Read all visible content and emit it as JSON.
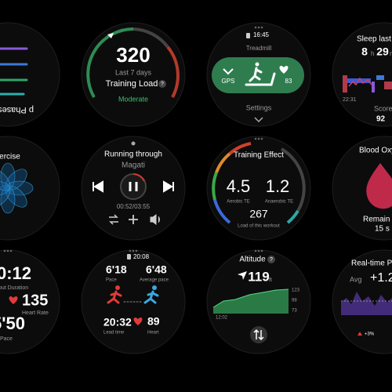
{
  "faces": [
    {
      "texts": [
        "p Phases"
      ]
    },
    {
      "texts": [
        "320",
        "Last 7 days",
        "Training Load",
        "?",
        "Moderate"
      ]
    },
    {
      "texts": [
        "16:45",
        "Treadmill",
        "GPS",
        "83",
        "Settings"
      ]
    },
    {
      "texts": [
        "Sleep last",
        "8",
        "h",
        "29",
        "m",
        "22:31",
        "Score",
        "92"
      ]
    },
    {
      "texts": [
        "xercise"
      ]
    },
    {
      "texts": [
        "Running through",
        "Magati",
        "00:52/03:55"
      ]
    },
    {
      "texts": [
        "Training Effect",
        "4.5",
        "1.2",
        "Aerobic TE",
        "Anaerobic TE",
        "267",
        "Load of this workout"
      ]
    },
    {
      "texts": [
        "Blood Oxy",
        "Remain s",
        "15 s"
      ]
    },
    {
      "texts": [
        "0:12",
        "out Duration",
        "135",
        "Heart Rate",
        "5'50",
        "Pace"
      ]
    },
    {
      "texts": [
        "20:08",
        "6'18",
        "Pace",
        "6'48",
        "Average pace",
        "20:32",
        "Lead time",
        "89",
        "Heart"
      ]
    },
    {
      "texts": [
        "Altitude",
        "?",
        "119",
        "ft",
        "12:02",
        "123",
        "98",
        "73"
      ]
    },
    {
      "texts": [
        "Real-time Pe",
        "Avg",
        "+1.2",
        "+3%"
      ]
    }
  ]
}
